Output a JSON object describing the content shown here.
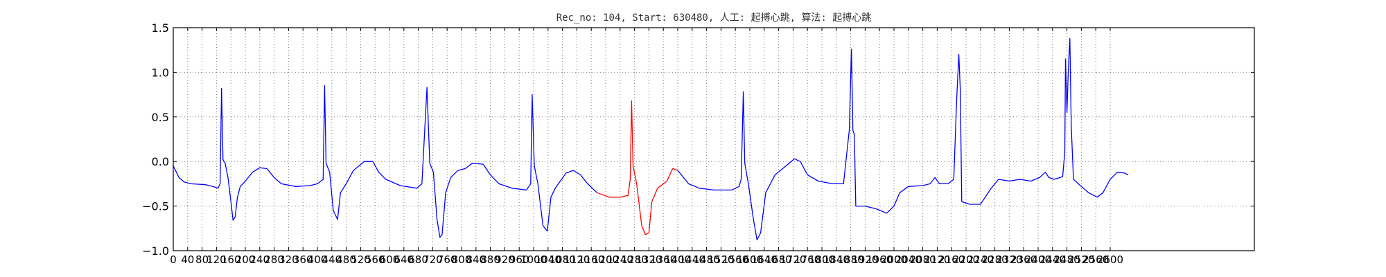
{
  "chart_data": {
    "type": "line",
    "title": "Rec_no: 104, Start: 630480, 人工: 起搏心跳, 算法: 起搏心跳",
    "xlabel": "",
    "ylabel": "",
    "xlim": [
      0,
      1500
    ],
    "ylim": [
      -1.0,
      1.5
    ],
    "grid": true,
    "grid_style": "dotted",
    "yticks": [
      "1.5",
      "1.0",
      "0.5",
      "0.0",
      "−0.5",
      "−1.0"
    ],
    "ytick_values": [
      1.5,
      1.0,
      0.5,
      0.0,
      -0.5,
      -1.0
    ],
    "xtick_step": 20,
    "xtick_labels": [
      "0",
      "40",
      "80",
      "120",
      "160",
      "200",
      "240",
      "280",
      "320",
      "360",
      "400",
      "440",
      "480",
      "520",
      "560",
      "600",
      "640",
      "680",
      "720",
      "760",
      "800",
      "840",
      "880",
      "920",
      "960",
      "1000",
      "1040",
      "1080",
      "1120",
      "1160",
      "1200",
      "1240",
      "1280",
      "1320",
      "1360",
      "1400",
      "1440",
      "1480",
      "1520",
      "1560",
      "1600",
      "1640",
      "1680",
      "1720",
      "1760",
      "1800",
      "1840",
      "1880",
      "1920",
      "1960",
      "2000",
      "2040",
      "2080",
      "2120",
      "2160",
      "2200",
      "2240",
      "2280",
      "2320",
      "2360",
      "2400",
      "2440",
      "2480",
      "2520",
      "2560",
      "2600"
    ],
    "colors": {
      "normal": "#0000ff",
      "highlight": "#ff0000",
      "grid": "#808080",
      "axes": "#000000"
    },
    "series": [
      {
        "role": "normal",
        "color": "#0000ff",
        "points": [
          [
            0,
            -0.05
          ],
          [
            8,
            -0.18
          ],
          [
            15,
            -0.23
          ],
          [
            25,
            -0.25
          ],
          [
            45,
            -0.26
          ],
          [
            55,
            -0.28
          ],
          [
            62,
            -0.3
          ],
          [
            65,
            -0.25
          ],
          [
            67,
            0.82
          ],
          [
            69,
            0.02
          ],
          [
            72,
            -0.02
          ],
          [
            76,
            -0.18
          ],
          [
            80,
            -0.45
          ],
          [
            83,
            -0.66
          ],
          [
            86,
            -0.62
          ],
          [
            89,
            -0.4
          ],
          [
            93,
            -0.28
          ],
          [
            100,
            -0.22
          ],
          [
            110,
            -0.12
          ],
          [
            120,
            -0.07
          ],
          [
            130,
            -0.08
          ],
          [
            140,
            -0.18
          ],
          [
            150,
            -0.25
          ],
          [
            170,
            -0.28
          ],
          [
            190,
            -0.27
          ],
          [
            200,
            -0.25
          ],
          [
            208,
            -0.2
          ],
          [
            210,
            0.85
          ],
          [
            212,
            -0.02
          ],
          [
            217,
            -0.12
          ],
          [
            222,
            -0.55
          ],
          [
            228,
            -0.65
          ],
          [
            232,
            -0.35
          ],
          [
            240,
            -0.25
          ],
          [
            250,
            -0.1
          ],
          [
            265,
            0.0
          ],
          [
            277,
            0.0
          ],
          [
            285,
            -0.12
          ],
          [
            295,
            -0.2
          ],
          [
            315,
            -0.27
          ],
          [
            338,
            -0.3
          ],
          [
            345,
            -0.25
          ],
          [
            352,
            0.83
          ],
          [
            356,
            -0.02
          ],
          [
            361,
            -0.12
          ],
          [
            366,
            -0.65
          ],
          [
            370,
            -0.85
          ],
          [
            373,
            -0.82
          ],
          [
            378,
            -0.35
          ],
          [
            385,
            -0.18
          ],
          [
            395,
            -0.1
          ],
          [
            405,
            -0.08
          ],
          [
            415,
            -0.02
          ],
          [
            430,
            -0.03
          ],
          [
            440,
            -0.15
          ],
          [
            452,
            -0.25
          ],
          [
            470,
            -0.3
          ],
          [
            490,
            -0.32
          ],
          [
            496,
            -0.25
          ],
          [
            498,
            0.75
          ],
          [
            501,
            -0.05
          ],
          [
            506,
            -0.25
          ],
          [
            513,
            -0.72
          ],
          [
            519,
            -0.78
          ],
          [
            524,
            -0.4
          ],
          [
            530,
            -0.3
          ],
          [
            545,
            -0.13
          ],
          [
            555,
            -0.1
          ],
          [
            565,
            -0.15
          ],
          [
            575,
            -0.25
          ],
          [
            588,
            -0.35
          ]
        ]
      },
      {
        "role": "highlight",
        "color": "#ff0000",
        "points": [
          [
            588,
            -0.35
          ],
          [
            605,
            -0.4
          ],
          [
            620,
            -0.4
          ],
          [
            631,
            -0.38
          ],
          [
            634,
            -0.2
          ],
          [
            636,
            0.68
          ],
          [
            638,
            -0.05
          ],
          [
            643,
            -0.25
          ],
          [
            650,
            -0.72
          ],
          [
            655,
            -0.82
          ],
          [
            660,
            -0.8
          ],
          [
            664,
            -0.45
          ],
          [
            672,
            -0.3
          ],
          [
            685,
            -0.22
          ],
          [
            693,
            -0.08
          ],
          [
            700,
            -0.1
          ]
        ]
      },
      {
        "role": "normal",
        "color": "#0000ff",
        "points": [
          [
            700,
            -0.1
          ],
          [
            715,
            -0.25
          ],
          [
            730,
            -0.3
          ],
          [
            750,
            -0.32
          ],
          [
            775,
            -0.32
          ],
          [
            785,
            -0.28
          ],
          [
            788,
            -0.2
          ],
          [
            791,
            0.78
          ],
          [
            793,
            -0.02
          ],
          [
            798,
            -0.25
          ],
          [
            805,
            -0.65
          ],
          [
            810,
            -0.88
          ],
          [
            815,
            -0.8
          ],
          [
            822,
            -0.35
          ],
          [
            835,
            -0.15
          ],
          [
            850,
            -0.05
          ],
          [
            862,
            0.03
          ],
          [
            870,
            0.0
          ],
          [
            880,
            -0.15
          ],
          [
            895,
            -0.22
          ],
          [
            915,
            -0.25
          ],
          [
            930,
            -0.25
          ],
          [
            938,
            0.35
          ],
          [
            941,
            1.26
          ],
          [
            943,
            0.35
          ],
          [
            945,
            0.3
          ],
          [
            947,
            -0.5
          ],
          [
            960,
            -0.5
          ],
          [
            975,
            -0.53
          ],
          [
            990,
            -0.58
          ],
          [
            1000,
            -0.5
          ],
          [
            1008,
            -0.35
          ],
          [
            1020,
            -0.28
          ],
          [
            1040,
            -0.27
          ],
          [
            1050,
            -0.25
          ],
          [
            1057,
            -0.18
          ],
          [
            1063,
            -0.25
          ],
          [
            1075,
            -0.25
          ],
          [
            1083,
            -0.2
          ],
          [
            1087,
            0.7
          ],
          [
            1090,
            1.2
          ],
          [
            1092,
            0.8
          ],
          [
            1094,
            -0.45
          ],
          [
            1105,
            -0.48
          ],
          [
            1120,
            -0.48
          ],
          [
            1135,
            -0.3
          ],
          [
            1145,
            -0.2
          ],
          [
            1160,
            -0.22
          ],
          [
            1175,
            -0.2
          ],
          [
            1190,
            -0.22
          ],
          [
            1202,
            -0.18
          ],
          [
            1210,
            -0.12
          ],
          [
            1215,
            -0.18
          ],
          [
            1222,
            -0.2
          ],
          [
            1234,
            -0.17
          ],
          [
            1237,
            0.1
          ],
          [
            1238,
            1.15
          ],
          [
            1240,
            0.55
          ],
          [
            1242,
            1.05
          ],
          [
            1244,
            1.38
          ],
          [
            1246,
            0.4
          ],
          [
            1249,
            -0.2
          ],
          [
            1260,
            -0.28
          ],
          [
            1270,
            -0.35
          ],
          [
            1282,
            -0.4
          ],
          [
            1290,
            -0.35
          ],
          [
            1300,
            -0.2
          ],
          [
            1310,
            -0.12
          ],
          [
            1320,
            -0.13
          ],
          [
            1325,
            -0.15
          ]
        ]
      }
    ]
  }
}
